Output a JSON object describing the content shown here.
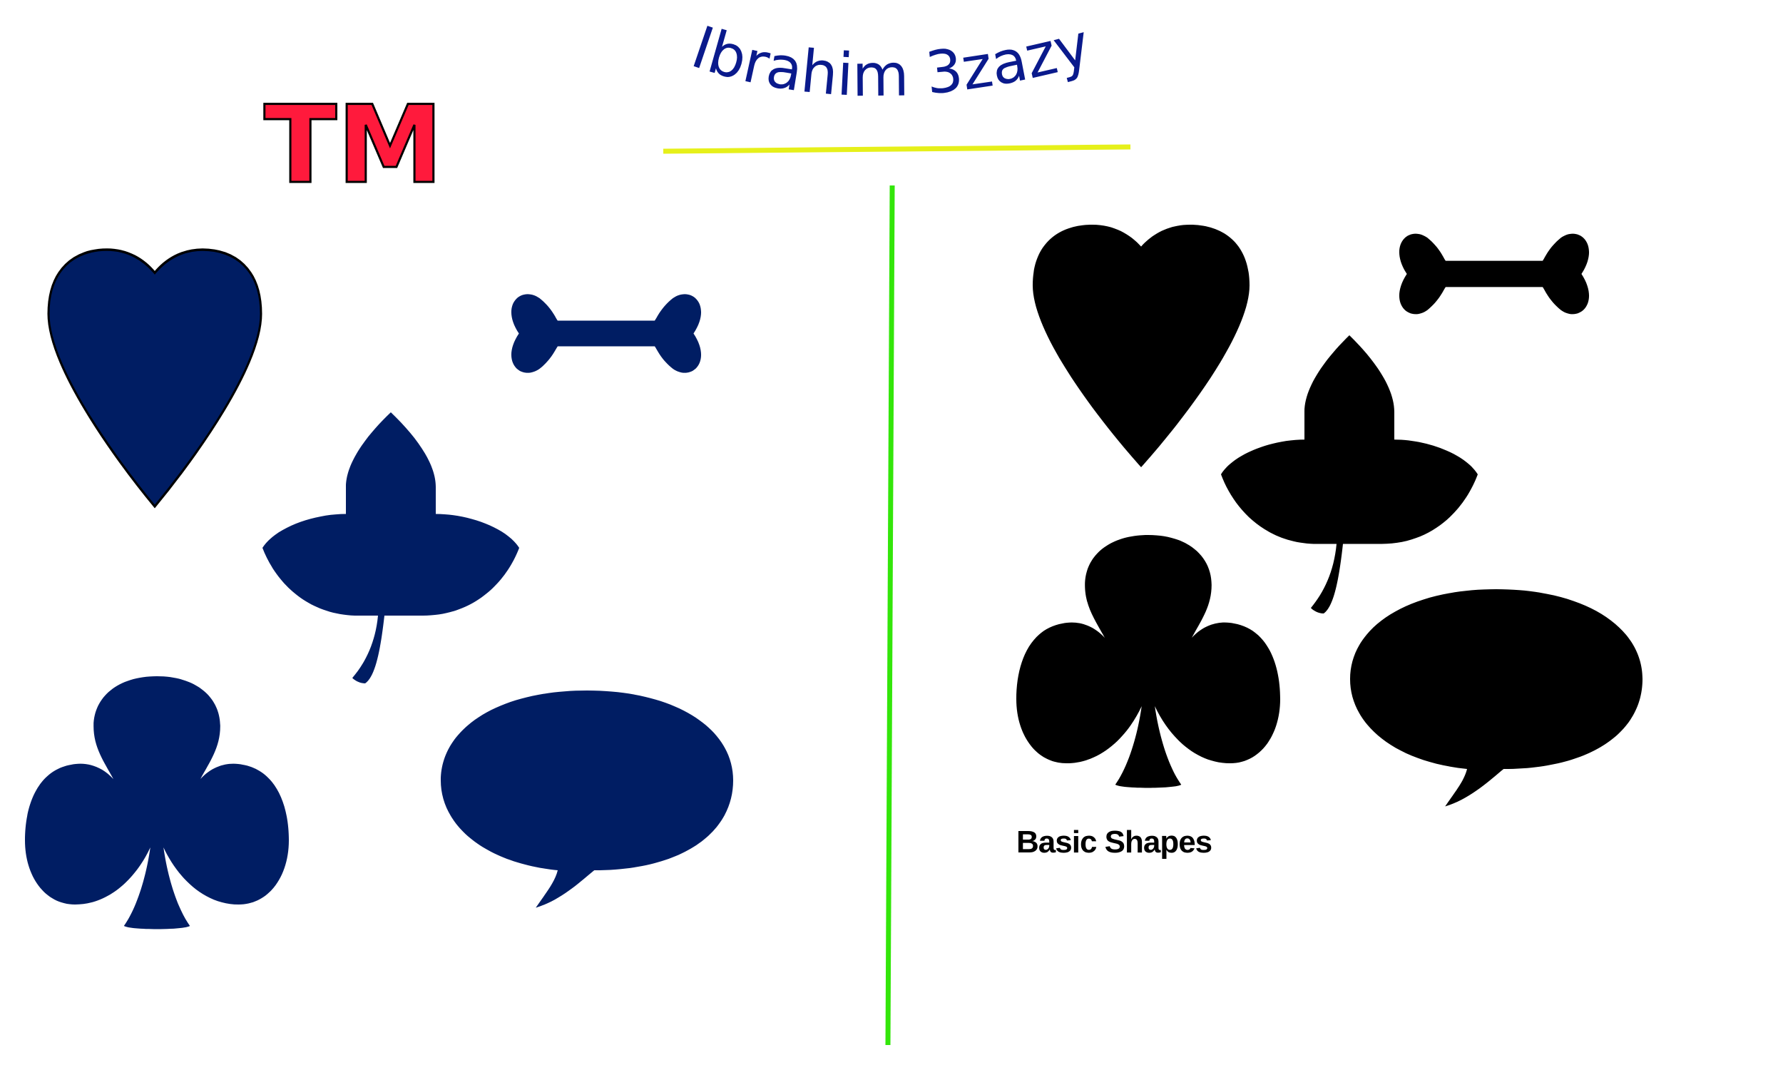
{
  "tm_mark": "TM",
  "author_signature": "Ibrahim 3zazy",
  "caption": "Basic Shapes",
  "colors": {
    "background": "#ffffff",
    "navy_fill": "#001d63",
    "black_fill": "#000000",
    "tm_fill": "#ff1a3c",
    "tm_stroke": "#000000",
    "signature": "#0a1a8c",
    "underline": "#e6f01a",
    "divider": "#33e60a"
  },
  "shapes": [
    "heart",
    "bone",
    "leaf",
    "club",
    "speech-bubble"
  ]
}
